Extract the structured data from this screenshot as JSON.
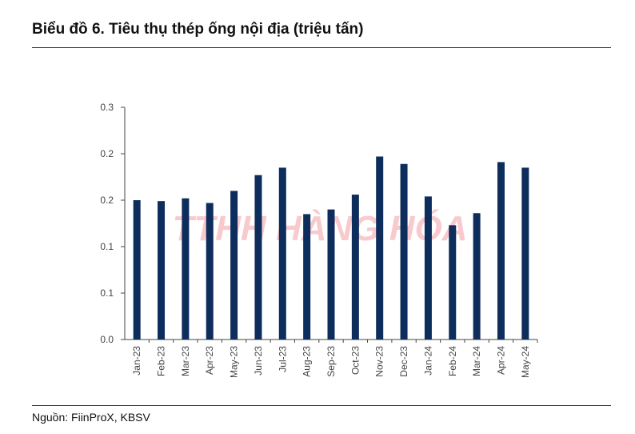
{
  "title": "Biểu đồ 6. Tiêu thụ thép ống nội địa (triệu tấn)",
  "source": "Nguồn: FiinProX, KBSV",
  "watermark": "TTHH HÀNG HÓA",
  "chart_data": {
    "type": "bar",
    "title": "Biểu đồ 6. Tiêu thụ thép ống nội địa (triệu tấn)",
    "xlabel": "",
    "ylabel": "",
    "ylim": [
      0,
      0.25
    ],
    "y_ticks": [
      0,
      0.05,
      0.1,
      0.15,
      0.2,
      0.25
    ],
    "y_tick_labels": [
      "0.0",
      "0.1",
      "0.1",
      "0.2",
      "0.2",
      "0.3"
    ],
    "grid": false,
    "bar_color": "#0d2d5c",
    "categories": [
      "Jan-23",
      "Feb-23",
      "Mar-23",
      "Apr-23",
      "May-23",
      "Jun-23",
      "Jul-23",
      "Aug-23",
      "Sep-23",
      "Oct-23",
      "Nov-23",
      "Dec-23",
      "Jan-24",
      "Feb-24",
      "Mar-24",
      "Apr-24",
      "May-24"
    ],
    "values": [
      0.15,
      0.149,
      0.152,
      0.147,
      0.16,
      0.177,
      0.185,
      0.135,
      0.14,
      0.156,
      0.197,
      0.189,
      0.154,
      0.123,
      0.136,
      0.191,
      0.185
    ]
  }
}
